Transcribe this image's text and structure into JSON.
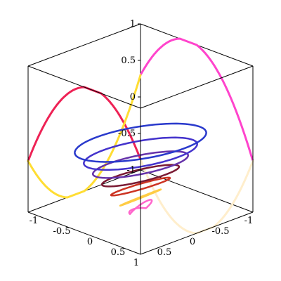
{
  "chart_data": {
    "type": "contour-3d",
    "title": "",
    "xlabel": "",
    "ylabel": "",
    "zlabel": "",
    "x_range": [
      -1,
      1
    ],
    "y_range": [
      -1,
      1
    ],
    "z_range": [
      -1,
      1
    ],
    "axes": "boxed",
    "grid": false,
    "surface_contour_levels": [
      -0.95,
      -0.8,
      -0.65,
      -0.5,
      -0.35,
      -0.2,
      -0.05
    ],
    "surface_contour_colors": [
      "#ff66cc",
      "#ffcc44",
      "#cc3322",
      "#7a1a33",
      "#6633aa",
      "#4433cc",
      "#2a3acc"
    ],
    "boundary_band_colors": [
      "#ff44cc",
      "#ee2255",
      "#ffdd33",
      "#ffeecc"
    ],
    "ticks": {
      "z": [
        "1",
        "0.5",
        "0",
        "-0.5",
        "-1"
      ],
      "x_front_left": [
        "-1",
        "-0.5",
        "0",
        "0.5",
        "1"
      ],
      "y_front_right": [
        "0.5",
        "0",
        "-0.5",
        "-1"
      ]
    }
  }
}
